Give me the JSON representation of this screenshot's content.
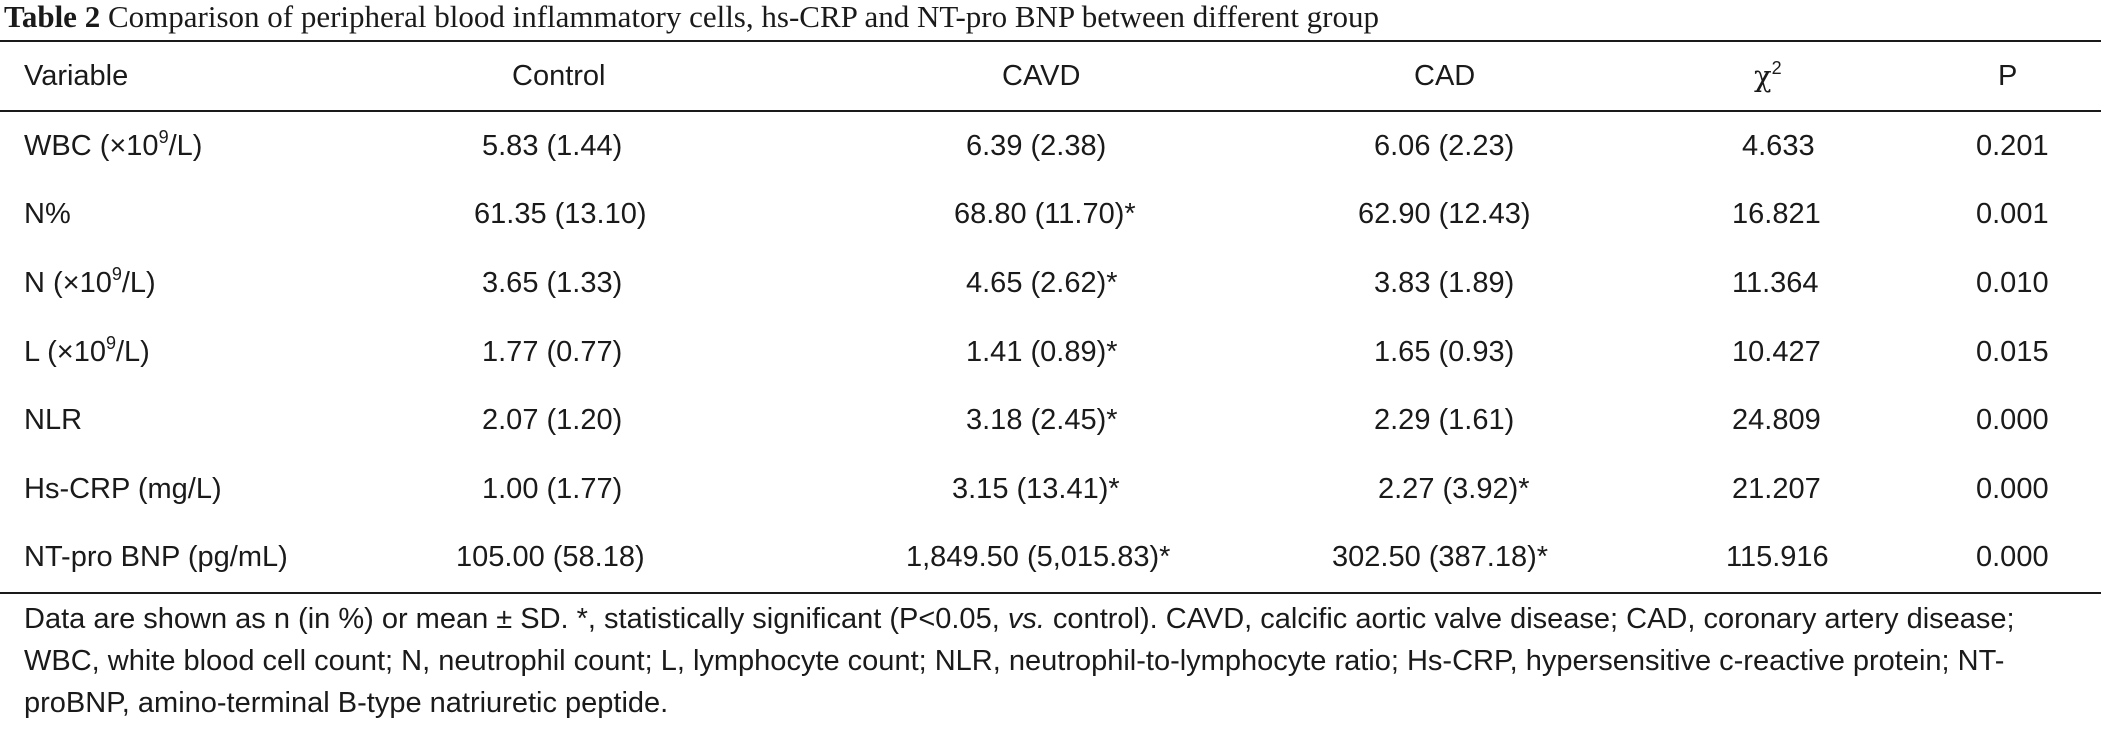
{
  "caption": {
    "label": "Table 2",
    "text": "Comparison of peripheral blood inflammatory cells, hs-CRP and NT-pro BNP between different group"
  },
  "table": {
    "headers": {
      "variable": "Variable",
      "control": "Control",
      "cavd": "CAVD",
      "cad": "CAD",
      "chi": "χ",
      "chi_sup": "2",
      "p": "P"
    },
    "rows": [
      {
        "variable": "WBC (×10",
        "variable_sup": "9",
        "variable_suffix": "/L)",
        "control": "5.83 (1.44)",
        "cavd": "6.39 (2.38)",
        "cad": "6.06 (2.23)",
        "chi": "4.633",
        "p": "0.201"
      },
      {
        "variable": "N%",
        "variable_sup": "",
        "variable_suffix": "",
        "control": "61.35 (13.10)",
        "cavd": "68.80 (11.70)*",
        "cad": "62.90 (12.43)",
        "chi": "16.821",
        "p": "0.001"
      },
      {
        "variable": "N (×10",
        "variable_sup": "9",
        "variable_suffix": "/L)",
        "control": "3.65 (1.33)",
        "cavd": "4.65 (2.62)*",
        "cad": "3.83 (1.89)",
        "chi": "11.364",
        "p": "0.010"
      },
      {
        "variable": "L (×10",
        "variable_sup": "9",
        "variable_suffix": "/L)",
        "control": "1.77 (0.77)",
        "cavd": "1.41 (0.89)*",
        "cad": "1.65 (0.93)",
        "chi": "10.427",
        "p": "0.015"
      },
      {
        "variable": "NLR",
        "variable_sup": "",
        "variable_suffix": "",
        "control": "2.07 (1.20)",
        "cavd": "3.18 (2.45)*",
        "cad": "2.29 (1.61)",
        "chi": "24.809",
        "p": "0.000"
      },
      {
        "variable": "Hs-CRP (mg/L)",
        "variable_sup": "",
        "variable_suffix": "",
        "control": "1.00 (1.77)",
        "cavd": "3.15 (13.41)*",
        "cad": "2.27 (3.92)*",
        "chi": "21.207",
        "p": "0.000"
      },
      {
        "variable": "NT-pro BNP (pg/mL)",
        "variable_sup": "",
        "variable_suffix": "",
        "control": "105.00 (58.18)",
        "cavd": "1,849.50 (5,015.83)*",
        "cad": "302.50 (387.18)*",
        "chi": "115.916",
        "p": "0.000"
      }
    ]
  },
  "footnote": {
    "part1": "Data are shown as n (in %) or mean ± SD. *, statistically significant (P<0.05, ",
    "vs": "vs.",
    "part2": " control). CAVD, calcific aortic valve disease; CAD, coronary artery disease; WBC, white blood cell count; N, neutrophil count; L, lymphocyte count; NLR, neutrophil-to-lymphocyte ratio; Hs-CRP, hypersensitive c-reactive protein; NT-proBNP, amino-terminal B-type natriuretic peptide."
  }
}
